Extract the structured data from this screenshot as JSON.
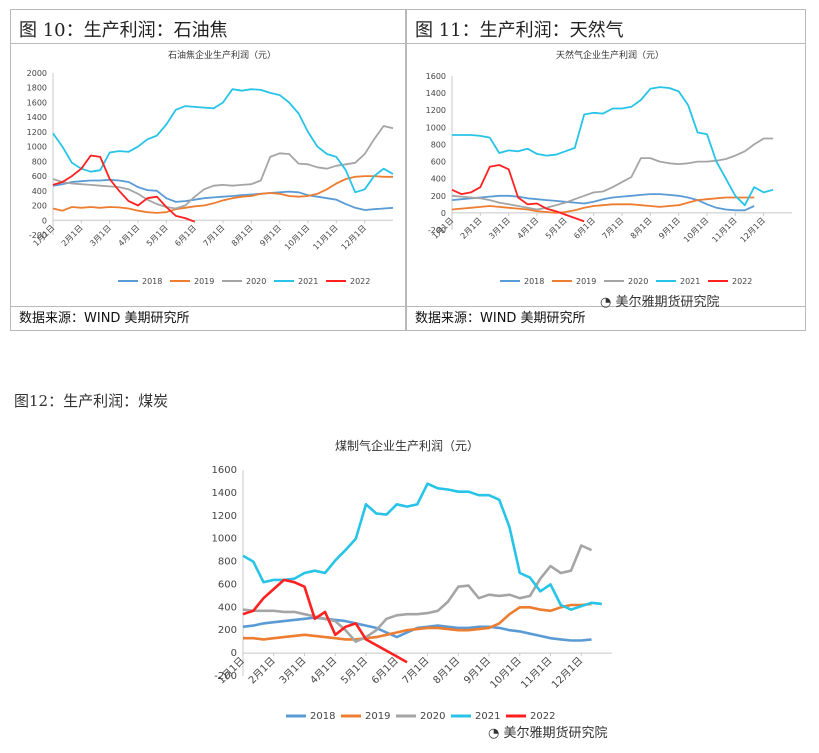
{
  "colors": {
    "y2018": "#5b9bd5",
    "y2019": "#ed7d31",
    "y2020": "#a5a5a5",
    "y2021": "#27c4e8",
    "y2022": "#ff2020"
  },
  "panels": {
    "fig10": {
      "heading": "图 10：生产利润：石油焦",
      "source": "数据来源：WIND  美期研究所"
    },
    "fig11": {
      "heading": "图 11：生产利润：天然气",
      "source": "数据来源：WIND  美期研究所"
    },
    "fig12": {
      "heading": "图12：生产利润：煤炭"
    }
  },
  "watermark": {
    "text": "美尔雅期货研究院"
  },
  "chart_data": [
    {
      "id": "petcoke",
      "type": "line",
      "title": "石油焦企业生产利润（元）",
      "xlabel": "",
      "ylabel": "",
      "ylim": [
        -200,
        2000
      ],
      "yticks": [
        "2000",
        "1800",
        "1600",
        "1400",
        "1200",
        "1000",
        "800",
        "600",
        "400",
        "200",
        "0",
        "-200"
      ],
      "ytick_values": [
        2000,
        1800,
        1600,
        1400,
        1200,
        1000,
        800,
        600,
        400,
        200,
        0,
        -200
      ],
      "xticks": [
        "1月1日",
        "2月1日",
        "3月1日",
        "4月1日",
        "5月1日",
        "6月1日",
        "7月1日",
        "8月1日",
        "9月1日",
        "10月1日",
        "11月1日",
        "12月1日"
      ],
      "legend": [
        "2018",
        "2019",
        "2020",
        "2021",
        "2022"
      ],
      "series": [
        {
          "name": "2018",
          "color": "#5b9bd5",
          "values": [
            470,
            490,
            520,
            530,
            540,
            540,
            550,
            540,
            520,
            450,
            410,
            400,
            300,
            250,
            260,
            280,
            300,
            310,
            320,
            330,
            340,
            350,
            360,
            370,
            380,
            390,
            380,
            340,
            320,
            300,
            280,
            220,
            170,
            140,
            150,
            160,
            170
          ]
        },
        {
          "name": "2019",
          "color": "#ed7d31",
          "values": [
            160,
            130,
            180,
            170,
            180,
            170,
            180,
            175,
            160,
            130,
            110,
            100,
            110,
            150,
            170,
            190,
            200,
            230,
            270,
            300,
            320,
            330,
            360,
            370,
            360,
            330,
            320,
            330,
            360,
            420,
            500,
            560,
            590,
            600,
            600,
            590,
            590
          ]
        },
        {
          "name": "2020",
          "color": "#a5a5a5",
          "values": [
            560,
            520,
            500,
            490,
            480,
            470,
            460,
            450,
            420,
            360,
            280,
            220,
            180,
            160,
            200,
            320,
            420,
            470,
            480,
            470,
            480,
            490,
            540,
            860,
            910,
            900,
            770,
            760,
            720,
            700,
            740,
            760,
            780,
            900,
            1100,
            1280,
            1250
          ]
        },
        {
          "name": "2021",
          "color": "#27c4e8",
          "values": [
            1180,
            1000,
            780,
            700,
            660,
            680,
            920,
            940,
            930,
            1000,
            1100,
            1150,
            1300,
            1500,
            1550,
            1540,
            1530,
            1520,
            1600,
            1780,
            1760,
            1780,
            1770,
            1730,
            1700,
            1600,
            1450,
            1200,
            1000,
            900,
            860,
            680,
            380,
            420,
            600,
            700,
            630
          ]
        },
        {
          "name": "2022",
          "color": "#ff2020",
          "values": [
            480,
            520,
            600,
            700,
            880,
            860,
            560,
            400,
            260,
            200,
            300,
            320,
            180,
            60,
            30,
            -20
          ]
        }
      ]
    },
    {
      "id": "natgas",
      "type": "line",
      "title": "天然气企业生产利润（元）",
      "xlabel": "",
      "ylabel": "",
      "ylim": [
        -200,
        1600
      ],
      "yticks": [
        "1600",
        "1400",
        "1200",
        "1000",
        "800",
        "600",
        "400",
        "200",
        "0",
        "-200"
      ],
      "ytick_values": [
        1600,
        1400,
        1200,
        1000,
        800,
        600,
        400,
        200,
        0,
        -200
      ],
      "xticks": [
        "1月1日",
        "2月1日",
        "3月1日",
        "4月1日",
        "5月1日",
        "6月1日",
        "7月1日",
        "8月1日",
        "9月1日",
        "10月1日",
        "11月1日",
        "12月1日"
      ],
      "legend": [
        "2018",
        "2019",
        "2020",
        "2021",
        "2022"
      ],
      "series": [
        {
          "name": "2018",
          "color": "#5b9bd5",
          "values": [
            150,
            160,
            170,
            180,
            190,
            200,
            200,
            190,
            170,
            160,
            150,
            140,
            130,
            120,
            110,
            130,
            160,
            180,
            190,
            200,
            210,
            220,
            220,
            210,
            200,
            180,
            150,
            100,
            60,
            40,
            30,
            30,
            80
          ]
        },
        {
          "name": "2019",
          "color": "#ed7d31",
          "values": [
            40,
            50,
            60,
            70,
            80,
            70,
            60,
            50,
            40,
            20,
            10,
            0,
            10,
            30,
            60,
            80,
            90,
            100,
            100,
            100,
            90,
            80,
            70,
            80,
            90,
            120,
            150,
            160,
            170,
            180,
            180,
            180,
            180
          ]
        },
        {
          "name": "2020",
          "color": "#a5a5a5",
          "values": [
            200,
            190,
            180,
            170,
            150,
            120,
            100,
            80,
            60,
            40,
            60,
            90,
            120,
            160,
            200,
            240,
            250,
            300,
            360,
            420,
            640,
            640,
            600,
            580,
            570,
            580,
            600,
            600,
            610,
            630,
            670,
            720,
            800,
            870,
            870
          ]
        },
        {
          "name": "2021",
          "color": "#27c4e8",
          "values": [
            910,
            910,
            910,
            900,
            880,
            700,
            730,
            720,
            750,
            690,
            670,
            680,
            720,
            760,
            1150,
            1170,
            1160,
            1220,
            1220,
            1240,
            1320,
            1450,
            1470,
            1460,
            1420,
            1260,
            940,
            920,
            600,
            400,
            200,
            90,
            300,
            240,
            270
          ]
        },
        {
          "name": "2022",
          "color": "#ff2020",
          "values": [
            270,
            220,
            240,
            300,
            540,
            560,
            510,
            180,
            100,
            110,
            50,
            20,
            -20,
            -60,
            -100
          ]
        }
      ]
    },
    {
      "id": "coalgas",
      "type": "line",
      "title": "煤制气企业生产利润（元）",
      "xlabel": "",
      "ylabel": "",
      "ylim": [
        -200,
        1600
      ],
      "yticks": [
        "1600",
        "1400",
        "1200",
        "1000",
        "800",
        "600",
        "400",
        "200",
        "0",
        "-200"
      ],
      "ytick_values": [
        1600,
        1400,
        1200,
        1000,
        800,
        600,
        400,
        200,
        0,
        -200
      ],
      "xticks": [
        "1月1日",
        "2月1日",
        "3月1日",
        "4月1日",
        "5月1日",
        "6月1日",
        "7月1日",
        "8月1日",
        "9月1日",
        "10月1日",
        "11月1日",
        "12月1日"
      ],
      "legend": [
        "2018",
        "2019",
        "2020",
        "2021",
        "2022"
      ],
      "series": [
        {
          "name": "2018",
          "color": "#5b9bd5",
          "values": [
            230,
            240,
            260,
            270,
            280,
            290,
            300,
            310,
            300,
            290,
            280,
            260,
            240,
            220,
            180,
            140,
            180,
            220,
            230,
            240,
            230,
            220,
            220,
            230,
            230,
            220,
            200,
            190,
            170,
            150,
            130,
            120,
            110,
            110,
            120
          ]
        },
        {
          "name": "2019",
          "color": "#ed7d31",
          "values": [
            130,
            130,
            120,
            130,
            140,
            150,
            160,
            150,
            140,
            130,
            120,
            120,
            130,
            140,
            160,
            180,
            200,
            210,
            220,
            220,
            210,
            200,
            200,
            210,
            220,
            260,
            340,
            400,
            400,
            380,
            370,
            400,
            420,
            420,
            430
          ]
        },
        {
          "name": "2020",
          "color": "#a5a5a5",
          "values": [
            380,
            370,
            370,
            370,
            360,
            360,
            340,
            320,
            300,
            280,
            200,
            100,
            140,
            200,
            300,
            330,
            340,
            340,
            350,
            370,
            450,
            580,
            590,
            480,
            510,
            500,
            510,
            480,
            500,
            650,
            760,
            700,
            720,
            940,
            900
          ]
        },
        {
          "name": "2021",
          "color": "#27c4e8",
          "values": [
            850,
            800,
            620,
            640,
            640,
            650,
            700,
            720,
            700,
            810,
            900,
            1000,
            1300,
            1220,
            1210,
            1300,
            1280,
            1300,
            1480,
            1440,
            1430,
            1410,
            1410,
            1380,
            1380,
            1340,
            1100,
            700,
            660,
            540,
            600,
            420,
            380,
            410,
            440,
            430
          ]
        },
        {
          "name": "2022",
          "color": "#ff2020",
          "values": [
            340,
            370,
            480,
            560,
            640,
            620,
            580,
            300,
            360,
            160,
            230,
            260,
            120,
            70,
            20,
            -30,
            -80
          ]
        }
      ]
    }
  ]
}
